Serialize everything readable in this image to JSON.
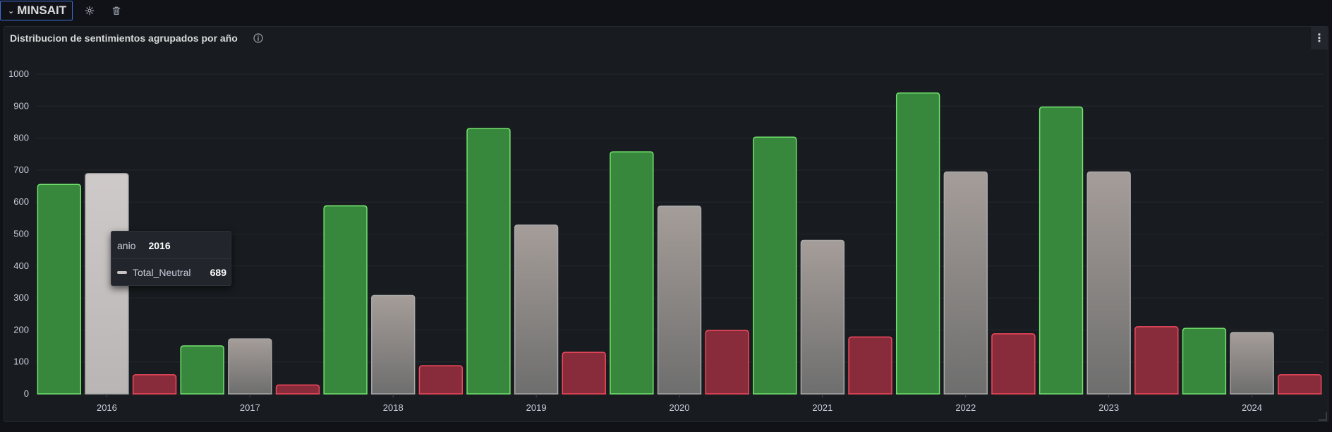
{
  "row": {
    "title": "MINSAIT",
    "icons": [
      "chevron-down-icon",
      "gear-icon",
      "trash-icon"
    ]
  },
  "panel": {
    "title": "Distribucion de sentimientos agrupados por año",
    "icons": [
      "info-icon",
      "kebab-menu-icon"
    ],
    "menu_glyph": "⋮"
  },
  "tooltip": {
    "x_label": "anio",
    "x_value": "2016",
    "series_label": "Total_Neutral",
    "series_value": "689"
  },
  "chart_data": {
    "type": "bar",
    "title": "Distribucion de sentimientos agrupados por año",
    "categories": [
      "2016",
      "2017",
      "2018",
      "2019",
      "2020",
      "2021",
      "2022",
      "2023",
      "2024"
    ],
    "ylim": [
      0,
      1000
    ],
    "yticks": [
      0,
      100,
      200,
      300,
      400,
      500,
      600,
      700,
      800,
      900,
      1000
    ],
    "grid": true,
    "legend": "none",
    "bar_sequence": [
      {
        "type": "positive",
        "value": 655
      },
      {
        "type": "neutral",
        "value": 689
      },
      {
        "type": "negative",
        "value": 60
      },
      {
        "type": "positive",
        "value": 150
      },
      {
        "type": "neutral",
        "value": 172
      },
      {
        "type": "negative",
        "value": 28
      },
      {
        "type": "positive",
        "value": 588
      },
      {
        "type": "neutral",
        "value": 308
      },
      {
        "type": "negative",
        "value": 88
      },
      {
        "type": "positive",
        "value": 830
      },
      {
        "type": "neutral",
        "value": 528
      },
      {
        "type": "negative",
        "value": 130
      },
      {
        "type": "positive",
        "value": 757
      },
      {
        "type": "neutral",
        "value": 587
      },
      {
        "type": "negative",
        "value": 198
      },
      {
        "type": "positive",
        "value": 803
      },
      {
        "type": "neutral",
        "value": 480
      },
      {
        "type": "negative",
        "value": 178
      },
      {
        "type": "positive",
        "value": 941
      },
      {
        "type": "neutral",
        "value": 694
      },
      {
        "type": "negative",
        "value": 188
      },
      {
        "type": "positive",
        "value": 897
      },
      {
        "type": "neutral",
        "value": 694
      },
      {
        "type": "negative",
        "value": 210
      },
      {
        "type": "positive",
        "value": 205
      },
      {
        "type": "neutral",
        "value": 192
      },
      {
        "type": "negative",
        "value": 60
      }
    ],
    "colors": {
      "positive_fill": "#37873d",
      "positive_stroke": "#73e36e",
      "negative_fill": "#882b3b",
      "negative_stroke": "#f2495c",
      "neutral_top": "#a59d99",
      "neutral_bottom": "#6e6e6e",
      "neutral_highlight_top": "#cfcaca",
      "neutral_highlight_bottom": "#b9b5b5",
      "neutral_stroke": "#a9a9a9"
    }
  }
}
